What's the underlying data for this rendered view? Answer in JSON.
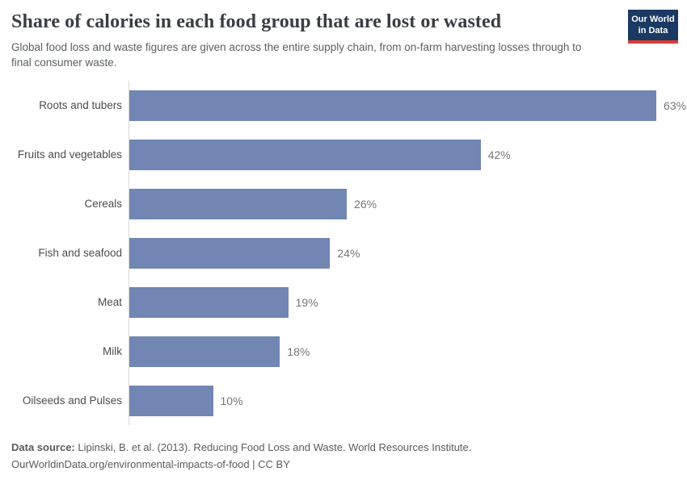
{
  "header": {
    "title": "Share of calories in each food group that are lost or wasted",
    "subtitle": "Global food loss and waste figures are given across the entire supply chain, from on-farm harvesting losses through to final consumer waste.",
    "logo": {
      "line1": "Our World",
      "line2": "in Data",
      "background_color": "#1a3a63",
      "accent_color": "#dc3c31"
    }
  },
  "chart_data": {
    "type": "bar",
    "orientation": "horizontal",
    "title": "Share of calories in each food group that are lost or wasted",
    "xlabel": "",
    "ylabel": "",
    "categories": [
      "Roots and tubers",
      "Fruits and vegetables",
      "Cereals",
      "Fish and seafood",
      "Meat",
      "Milk",
      "Oilseeds and Pulses"
    ],
    "values": [
      63,
      42,
      26,
      24,
      19,
      18,
      10
    ],
    "value_labels": [
      "63%",
      "42%",
      "26%",
      "24%",
      "19%",
      "18%",
      "10%"
    ],
    "unit": "%",
    "xlim": [
      0,
      63
    ],
    "grid": "off",
    "axis_ticks_shown": false,
    "bar_color": "#7186b2",
    "axis_line_color": "#d9d9d9"
  },
  "footer": {
    "source_label": "Data source:",
    "source_text": " Lipinski, B. et al. (2013). Reducing Food Loss and Waste. World Resources Institute.",
    "link_line": "OurWorldinData.org/environmental-impacts-of-food | CC BY"
  }
}
